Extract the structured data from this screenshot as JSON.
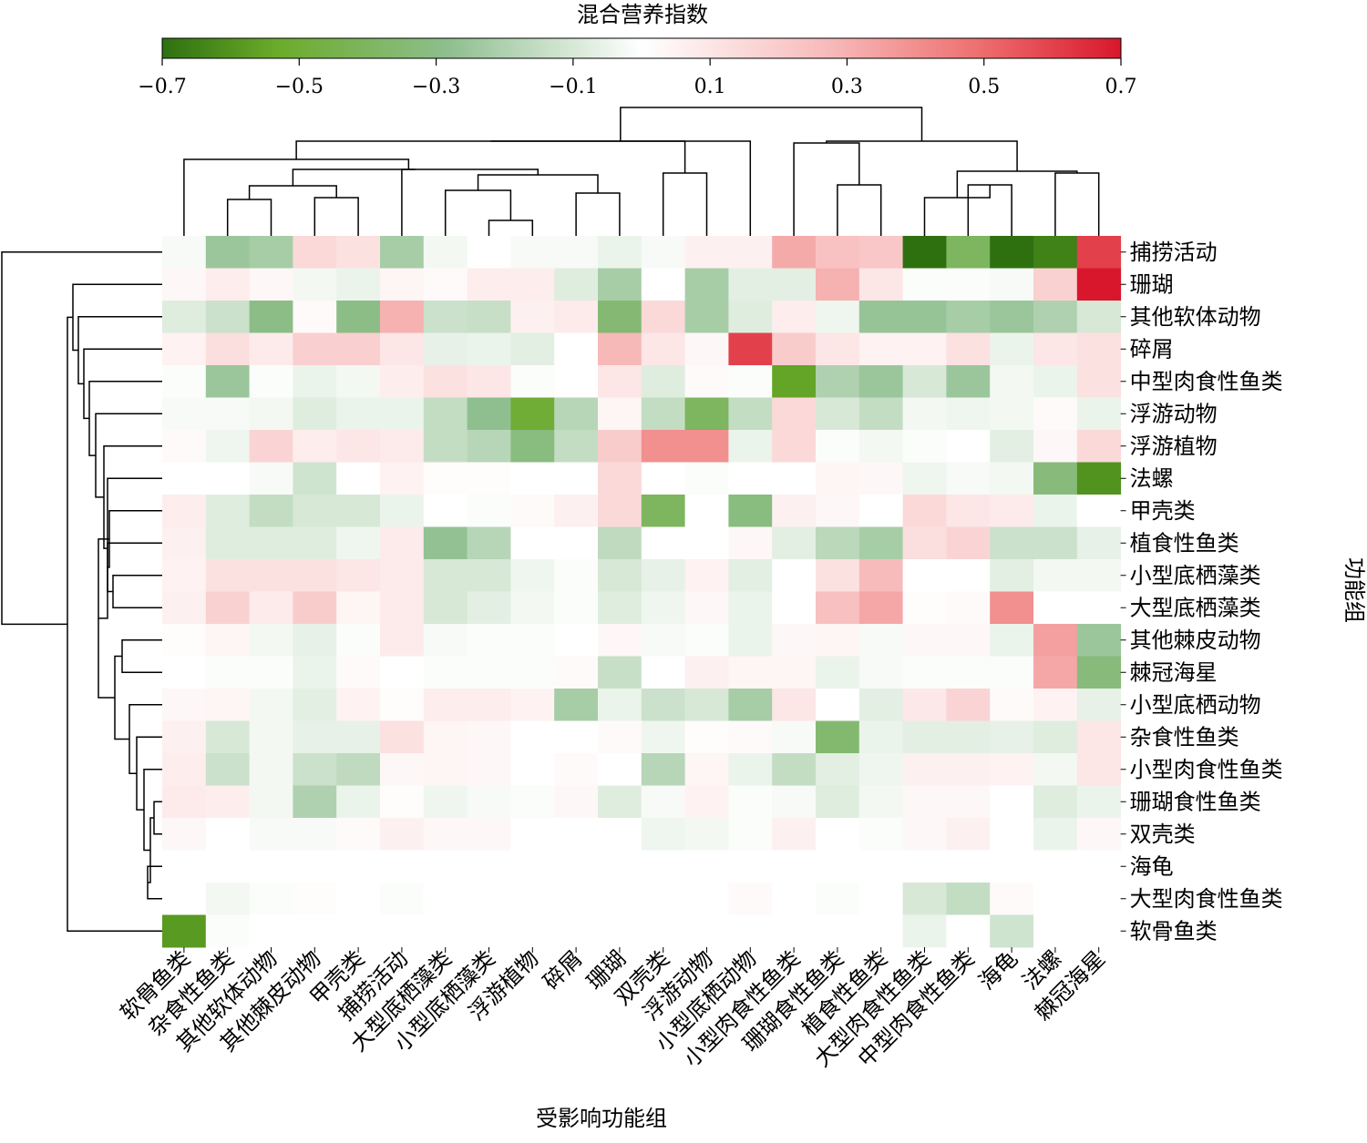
{
  "chart_data": {
    "type": "heatmap",
    "colorbar": {
      "title": "混合营养指数",
      "range": [
        -0.7,
        0.7
      ],
      "ticks": [
        "−0.7",
        "−0.5",
        "−0.3",
        "−0.1",
        "0.1",
        "0.3",
        "0.5",
        "0.7"
      ],
      "colors": {
        "negative_end": "#2e7010",
        "mid_green": "#6bab2a",
        "light_green": "#a8cfa0",
        "center": "#ffffff",
        "light_red": "#f9c8c8",
        "positive_end": "#d8172c"
      }
    },
    "xlabel": "受影响功能组",
    "ylabel": "功能组",
    "columns": [
      "软骨鱼类",
      "杂食性鱼类",
      "其他软体动物",
      "其他棘皮动物",
      "甲壳类",
      "捕捞活动",
      "大型底栖藻类",
      "小型底栖藻类",
      "浮游植物",
      "碎屑",
      "珊瑚",
      "双壳类",
      "浮游动物",
      "小型底栖动物",
      "小型肉食性鱼类",
      "珊瑚食性鱼类",
      "植食性鱼类",
      "大型肉食性鱼类",
      "中型肉食性鱼类",
      "海龟",
      "法螺",
      "棘冠海星"
    ],
    "rows": [
      "捕捞活动",
      "珊瑚",
      "其他软体动物",
      "碎屑",
      "中型肉食性鱼类",
      "浮游动物",
      "浮游植物",
      "法螺",
      "甲壳类",
      "植食性鱼类",
      "小型底栖藻类",
      "大型底栖藻类",
      "其他棘皮动物",
      "棘冠海星",
      "小型底栖动物",
      "杂食性鱼类",
      "小型肉食性鱼类",
      "珊瑚食性鱼类",
      "双壳类",
      "海龟",
      "大型肉食性鱼类",
      "软骨鱼类"
    ],
    "values": [
      [
        -0.02,
        -0.25,
        -0.22,
        0.15,
        0.12,
        -0.22,
        -0.03,
        0.0,
        -0.02,
        -0.02,
        -0.05,
        -0.02,
        0.06,
        0.06,
        0.32,
        0.24,
        0.22,
        -0.7,
        -0.4,
        -0.7,
        -0.65,
        0.6
      ],
      [
        0.03,
        0.07,
        0.03,
        -0.03,
        -0.05,
        0.04,
        0.02,
        0.07,
        0.07,
        -0.08,
        -0.22,
        0.0,
        -0.22,
        -0.07,
        -0.07,
        0.3,
        0.1,
        -0.01,
        -0.01,
        -0.02,
        0.18,
        0.7
      ],
      [
        -0.08,
        -0.13,
        -0.3,
        0.02,
        -0.3,
        0.3,
        -0.13,
        -0.14,
        0.06,
        0.08,
        -0.35,
        0.15,
        -0.22,
        -0.08,
        0.07,
        -0.04,
        -0.26,
        -0.26,
        -0.22,
        -0.25,
        -0.2,
        -0.1
      ],
      [
        0.05,
        0.13,
        0.08,
        0.19,
        0.19,
        0.1,
        -0.06,
        -0.05,
        -0.07,
        0.0,
        0.28,
        0.1,
        0.03,
        0.6,
        0.2,
        0.1,
        0.05,
        0.05,
        0.12,
        -0.05,
        0.1,
        0.12
      ],
      [
        -0.01,
        -0.25,
        -0.01,
        -0.05,
        -0.03,
        0.07,
        0.12,
        0.1,
        -0.01,
        0.0,
        0.1,
        -0.08,
        0.02,
        -0.01,
        -0.55,
        -0.2,
        -0.25,
        -0.1,
        -0.25,
        -0.03,
        -0.05,
        0.12
      ],
      [
        -0.02,
        -0.02,
        -0.03,
        -0.08,
        -0.05,
        -0.05,
        -0.15,
        -0.28,
        -0.5,
        -0.18,
        0.04,
        -0.15,
        -0.4,
        -0.15,
        0.15,
        -0.1,
        -0.15,
        -0.03,
        -0.04,
        -0.03,
        0.02,
        -0.05
      ],
      [
        0.02,
        -0.04,
        0.17,
        0.07,
        0.1,
        0.08,
        -0.15,
        -0.18,
        -0.32,
        -0.15,
        0.2,
        0.4,
        0.4,
        -0.05,
        0.15,
        -0.01,
        -0.03,
        -0.01,
        0.0,
        -0.07,
        0.03,
        0.15
      ],
      [
        0.0,
        0.0,
        -0.02,
        -0.12,
        0.0,
        0.05,
        0.01,
        0.01,
        0.0,
        0.0,
        0.15,
        0.0,
        -0.01,
        0.0,
        0.0,
        0.04,
        0.03,
        -0.04,
        -0.02,
        -0.03,
        -0.33,
        -0.6
      ],
      [
        0.07,
        -0.08,
        -0.15,
        -0.1,
        -0.1,
        -0.05,
        0.0,
        -0.01,
        0.02,
        0.06,
        0.15,
        -0.4,
        0.0,
        -0.32,
        0.06,
        0.03,
        0.0,
        0.15,
        0.1,
        0.08,
        -0.05,
        0.0
      ],
      [
        0.06,
        -0.08,
        -0.08,
        -0.08,
        -0.04,
        0.08,
        -0.27,
        -0.18,
        0.0,
        0.0,
        -0.16,
        0.0,
        0.0,
        0.03,
        -0.07,
        -0.17,
        -0.22,
        0.13,
        0.17,
        -0.13,
        -0.13,
        -0.06
      ],
      [
        0.05,
        0.12,
        0.12,
        0.12,
        0.1,
        0.08,
        -0.1,
        -0.1,
        -0.04,
        -0.01,
        -0.1,
        -0.06,
        0.05,
        -0.07,
        0.0,
        0.12,
        0.27,
        0.0,
        0.0,
        -0.07,
        -0.03,
        -0.03
      ],
      [
        0.06,
        0.18,
        0.08,
        0.2,
        0.04,
        0.08,
        -0.1,
        -0.07,
        -0.03,
        -0.01,
        -0.08,
        -0.04,
        0.03,
        -0.05,
        0.0,
        0.25,
        0.33,
        0.01,
        0.02,
        0.4,
        0.0,
        0.0
      ],
      [
        0.01,
        0.04,
        -0.03,
        -0.06,
        -0.01,
        0.08,
        -0.02,
        -0.01,
        -0.01,
        0.0,
        0.03,
        -0.02,
        -0.01,
        -0.05,
        0.03,
        0.04,
        -0.02,
        0.03,
        0.03,
        -0.05,
        0.35,
        -0.25
      ],
      [
        0.0,
        -0.01,
        -0.01,
        -0.05,
        0.02,
        0.0,
        -0.01,
        -0.01,
        -0.01,
        0.02,
        -0.14,
        0.0,
        0.06,
        0.04,
        0.04,
        -0.05,
        -0.02,
        -0.01,
        -0.01,
        -0.01,
        0.33,
        -0.33
      ],
      [
        0.03,
        0.04,
        -0.03,
        -0.07,
        0.05,
        0.01,
        0.07,
        0.07,
        0.05,
        -0.22,
        -0.05,
        -0.13,
        -0.1,
        -0.22,
        0.1,
        0.0,
        -0.07,
        0.09,
        0.17,
        0.02,
        0.05,
        -0.06
      ],
      [
        0.06,
        -0.1,
        -0.03,
        -0.06,
        -0.06,
        0.12,
        0.04,
        0.03,
        0.0,
        0.0,
        0.02,
        -0.04,
        0.01,
        0.02,
        -0.02,
        -0.36,
        -0.05,
        -0.07,
        -0.07,
        -0.06,
        -0.08,
        0.1
      ],
      [
        0.07,
        -0.13,
        -0.03,
        -0.13,
        -0.16,
        0.03,
        0.04,
        0.03,
        0.0,
        0.02,
        0.0,
        -0.18,
        0.04,
        -0.05,
        -0.15,
        -0.07,
        -0.04,
        0.06,
        0.06,
        0.05,
        -0.03,
        0.1
      ],
      [
        0.08,
        0.07,
        -0.03,
        -0.2,
        -0.05,
        0.01,
        -0.04,
        -0.02,
        -0.01,
        0.03,
        -0.08,
        -0.02,
        0.05,
        -0.01,
        -0.02,
        -0.08,
        -0.03,
        0.03,
        0.03,
        0.0,
        -0.08,
        -0.05
      ],
      [
        0.03,
        0.0,
        -0.02,
        -0.02,
        0.02,
        0.06,
        0.03,
        0.03,
        0.0,
        0.0,
        0.0,
        -0.04,
        -0.03,
        -0.01,
        0.06,
        0.0,
        -0.01,
        0.03,
        0.06,
        0.0,
        -0.05,
        0.03
      ],
      [
        0.0,
        0.0,
        0.0,
        0.0,
        0.0,
        0.0,
        0.0,
        0.0,
        0.0,
        0.0,
        0.0,
        0.0,
        0.0,
        0.0,
        0.0,
        0.0,
        0.0,
        0.0,
        0.0,
        0.0,
        0.0,
        0.0
      ],
      [
        0.0,
        -0.03,
        -0.01,
        0.01,
        0.0,
        -0.01,
        0.0,
        0.0,
        0.0,
        0.0,
        0.0,
        0.0,
        0.0,
        0.02,
        0.0,
        -0.01,
        0.0,
        -0.1,
        -0.15,
        0.02,
        0.0,
        0.0
      ],
      [
        -0.58,
        -0.01,
        0.0,
        0.0,
        0.0,
        0.0,
        0.0,
        0.0,
        0.0,
        0.0,
        0.0,
        0.0,
        0.0,
        0.0,
        0.0,
        0.0,
        0.0,
        -0.05,
        0.0,
        -0.12,
        0.0,
        0.0
      ]
    ]
  }
}
